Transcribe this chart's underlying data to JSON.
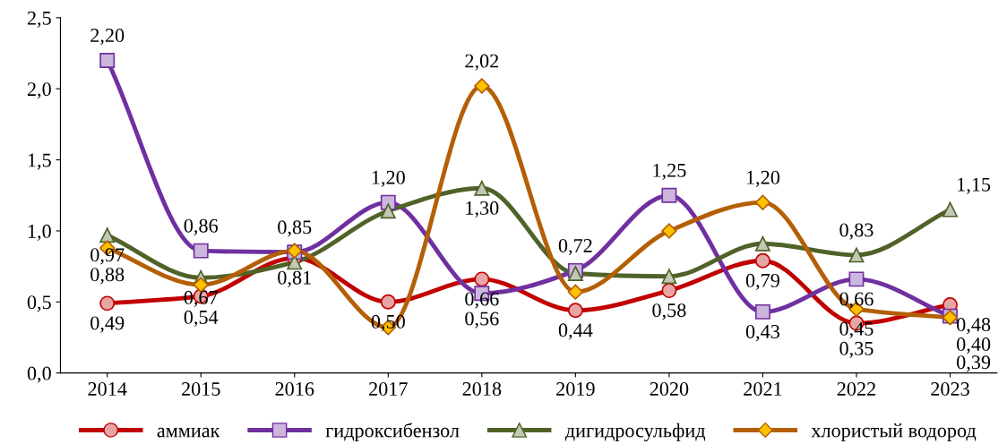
{
  "chart_data": {
    "type": "line",
    "categories": [
      "2014",
      "2015",
      "2016",
      "2017",
      "2018",
      "2019",
      "2020",
      "2021",
      "2022",
      "2023"
    ],
    "ylim": [
      0,
      2.5
    ],
    "yticks": [
      {
        "value": 0,
        "label": "0,0"
      },
      {
        "value": 0.5,
        "label": "0,5"
      },
      {
        "value": 1,
        "label": "1,0"
      },
      {
        "value": 1.5,
        "label": "1,5"
      },
      {
        "value": 2,
        "label": "2,0"
      },
      {
        "value": 2.5,
        "label": "2,5"
      }
    ],
    "grid": false,
    "legend": "bottom",
    "line_style": "solid",
    "series": [
      {
        "name": "аммиак",
        "color": "#c00000",
        "marker": "circle",
        "values": [
          0.49,
          0.54,
          0.81,
          0.5,
          0.66,
          0.44,
          0.58,
          0.79,
          0.35,
          0.48
        ],
        "value_labels": [
          "0,49",
          "0,54",
          "0,81",
          "0,50",
          "0,66",
          "0,44",
          "0,58",
          "0,79",
          "0,35",
          "0,48"
        ]
      },
      {
        "name": "гидроксибензол",
        "color": "#7030a0",
        "marker": "square",
        "values": [
          2.2,
          0.86,
          0.85,
          1.2,
          0.56,
          0.72,
          1.25,
          0.43,
          0.66,
          0.4
        ],
        "value_labels": [
          "2,20",
          "0,86",
          "0,85",
          "1,20",
          "0,56",
          "0,72",
          "1,25",
          "0,43",
          "0,66",
          "0,40"
        ]
      },
      {
        "name": "дигидросульфид",
        "color": "#4f6228",
        "marker": "triangle",
        "values": [
          0.97,
          0.67,
          0.78,
          1.14,
          1.3,
          0.7,
          0.68,
          0.91,
          0.83,
          1.15
        ],
        "value_labels": [
          "0,97",
          "0,67",
          null,
          null,
          "1,30",
          null,
          null,
          null,
          "0,83",
          "1,15"
        ]
      },
      {
        "name": "хлористый водород",
        "color": "#b45f06",
        "marker": "diamond",
        "values": [
          0.88,
          0.62,
          0.86,
          0.32,
          2.02,
          0.57,
          1.0,
          1.2,
          0.45,
          0.39
        ],
        "value_labels": [
          "0,88",
          null,
          null,
          null,
          "2,02",
          null,
          null,
          "1,20",
          "0,45",
          "0,39"
        ]
      }
    ]
  }
}
